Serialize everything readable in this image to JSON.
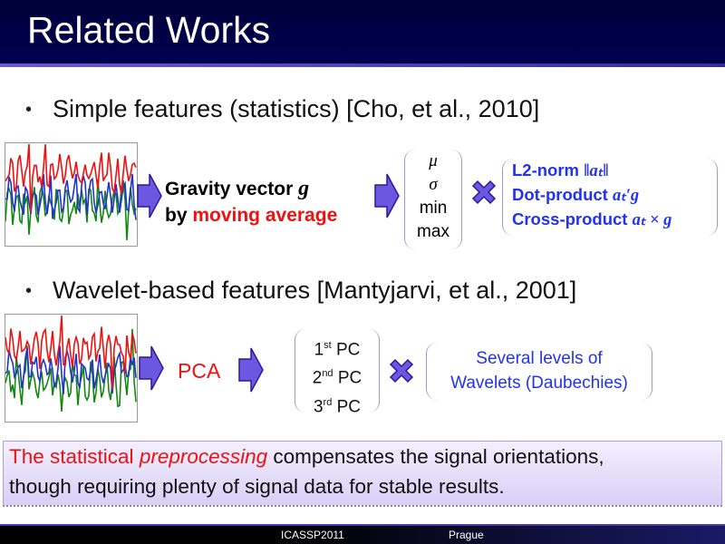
{
  "title": "Related Works",
  "bullets": [
    {
      "text": "Simple features (statistics)  [Cho, et al., 2010]"
    },
    {
      "text": "Wavelet-based features  [Mantyjarvi, et al., 2001]"
    }
  ],
  "row1": {
    "line1": "Gravity vector ",
    "line1_math": "g",
    "line2_prefix": "by ",
    "line2_red": "moving average",
    "stats": [
      "μ",
      "σ",
      "min",
      "max"
    ],
    "ops": [
      {
        "label": "L2-norm ",
        "math": "‖aₜ‖"
      },
      {
        "label": "Dot-product ",
        "math": "aₜ′g"
      },
      {
        "label": "Cross-product ",
        "math": "aₜ × g"
      }
    ]
  },
  "row2": {
    "pca": "PCA",
    "pcs": [
      {
        "n": "1",
        "sup": "st",
        "label": " PC"
      },
      {
        "n": "2",
        "sup": "nd",
        "label": " PC"
      },
      {
        "n": "3",
        "sup": "rd",
        "label": " PC"
      }
    ],
    "wavelets": [
      "Several levels of",
      "Wavelets (Daubechies)"
    ]
  },
  "conclusion": {
    "red": "The statistical ",
    "red_italic": "preprocessing",
    "rest1": " compensates the signal orientations,",
    "line2": "though requiring plenty of signal data for stable results."
  },
  "footer": {
    "conference": "ICASSP2011",
    "location": "Prague"
  },
  "colors": {
    "title_bg": "#000044",
    "accent": "#6a5acd",
    "blue_text": "#2233ee",
    "red_text": "#ee1111",
    "signal_colors": [
      "#ee1111",
      "#2233cc",
      "#118811"
    ]
  }
}
